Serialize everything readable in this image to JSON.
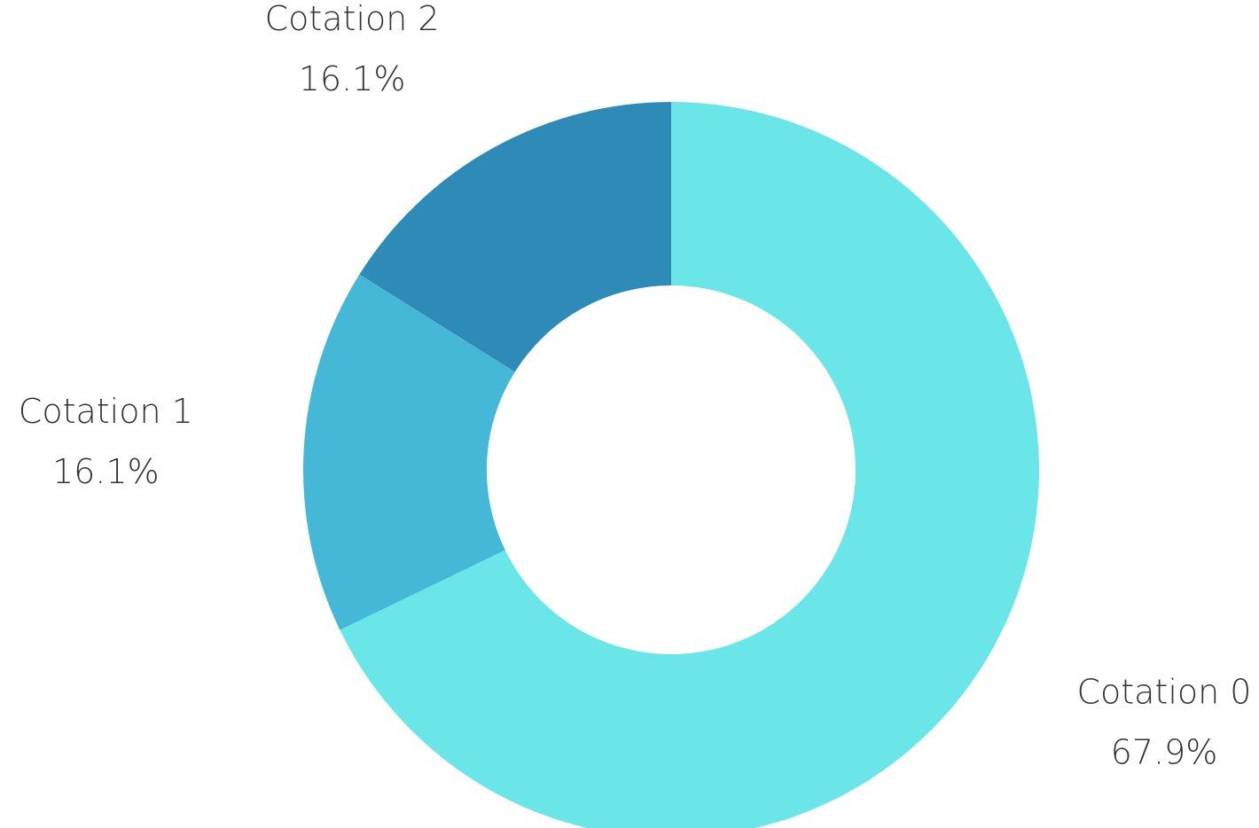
{
  "chart_data": {
    "type": "donut",
    "categories": [
      "Cotation 0",
      "Cotation 1",
      "Cotation 2"
    ],
    "values": [
      67.9,
      16.1,
      16.1
    ],
    "value_labels": [
      "67.9%",
      "16.1%",
      "16.1%"
    ],
    "colors": [
      "#6ae5e8",
      "#44b8d6",
      "#2e8bb8"
    ]
  }
}
